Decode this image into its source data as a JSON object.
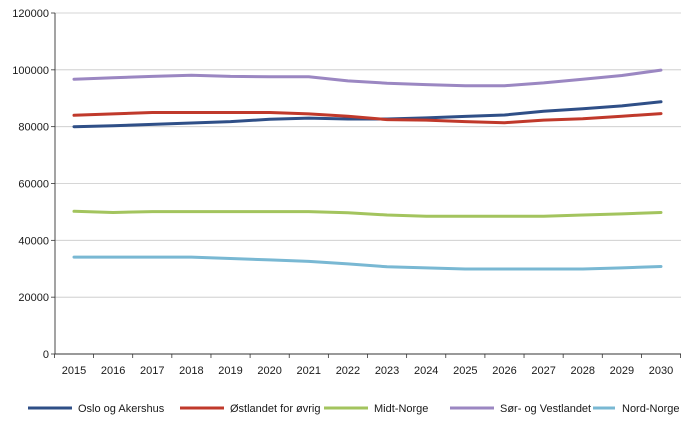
{
  "chart_data": {
    "type": "line",
    "title": "",
    "xlabel": "",
    "ylabel": "",
    "x": [
      2015,
      2016,
      2017,
      2018,
      2019,
      2020,
      2021,
      2022,
      2023,
      2024,
      2025,
      2026,
      2027,
      2028,
      2029,
      2030
    ],
    "ylim": [
      0,
      120000
    ],
    "yticks": [
      0,
      20000,
      40000,
      60000,
      80000,
      100000,
      120000
    ],
    "ytick_labels": [
      "0",
      "20000",
      "40000",
      "60000",
      "80000",
      "100000",
      "120000"
    ],
    "xtick_labels": [
      "2015",
      "2016",
      "2017",
      "2018",
      "2019",
      "2020",
      "2021",
      "2022",
      "2023",
      "2024",
      "2025",
      "2026",
      "2027",
      "2028",
      "2029",
      "2030"
    ],
    "grid": "horizontal",
    "legend_position": "bottom",
    "series": [
      {
        "name": "Oslo og Akershus",
        "color": "#2f4f87",
        "values": [
          80000,
          80300,
          80800,
          81300,
          81800,
          82600,
          83000,
          82700,
          82700,
          83100,
          83600,
          84100,
          85400,
          86300,
          87300,
          88800
        ]
      },
      {
        "name": "Østlandet for øvrig",
        "color": "#c0392b",
        "values": [
          84000,
          84500,
          85000,
          85000,
          85000,
          85000,
          84500,
          83700,
          82500,
          82300,
          81800,
          81400,
          82300,
          82800,
          83700,
          84600
        ]
      },
      {
        "name": "Midt-Norge",
        "color": "#a3c45e",
        "values": [
          50200,
          49800,
          50100,
          50100,
          50100,
          50100,
          50100,
          49700,
          48900,
          48500,
          48500,
          48500,
          48500,
          48900,
          49300,
          49800
        ]
      },
      {
        "name": "Sør- og Vestlandet",
        "color": "#9b87c2",
        "values": [
          96700,
          97200,
          97700,
          98100,
          97700,
          97600,
          97600,
          96100,
          95300,
          94800,
          94400,
          94400,
          95400,
          96700,
          98000,
          99900
        ]
      },
      {
        "name": "Nord-Norge",
        "color": "#79b8d3",
        "values": [
          34100,
          34100,
          34100,
          34100,
          33600,
          33100,
          32600,
          31700,
          30700,
          30300,
          29900,
          29900,
          29900,
          29900,
          30300,
          30800
        ]
      }
    ]
  }
}
